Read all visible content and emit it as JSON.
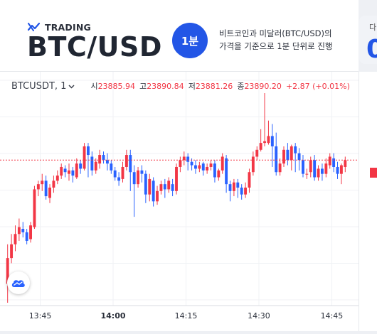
{
  "header": {
    "brand": "TRADING",
    "pair": "BTC/USD",
    "interval_badge": "1분",
    "description_line1": "비트코인과 미달러(BTC/USD)의",
    "description_line2": "가격을 기준으로 1분 단위로 진행",
    "side_card_label": "다",
    "side_card_value": "0"
  },
  "legend": {
    "symbol": "BTCUSDT, 1",
    "open_label": "시",
    "open": "23885.94",
    "high_label": "고",
    "high": "23890.84",
    "low_label": "저",
    "low": "23881.26",
    "close_label": "종",
    "close": "23890.20",
    "change": "+2.87 (+0.01%)"
  },
  "colors": {
    "up": "#f23645",
    "down": "#2962ff",
    "accent": "#2356e6"
  },
  "chart_data": {
    "type": "candlestick",
    "x_ticks": [
      "13:45",
      "14:00",
      "14:15",
      "14:30",
      "14:45"
    ],
    "current_price_line": "dashed red",
    "candles": [
      [
        23800,
        23815,
        23789,
        23823
      ],
      [
        23815,
        23823,
        23812,
        23829
      ],
      [
        23823,
        23829,
        23819,
        23834
      ],
      [
        23829,
        23833,
        23825,
        23838
      ],
      [
        23832,
        23830,
        23827,
        23836
      ],
      [
        23830,
        23825,
        23823,
        23832
      ],
      [
        23826,
        23834,
        23824,
        23836
      ],
      [
        23833,
        23855,
        23832,
        23857
      ],
      [
        23855,
        23858,
        23851,
        23860
      ],
      [
        23858,
        23860,
        23854,
        23864
      ],
      [
        23860,
        23851,
        23849,
        23863
      ],
      [
        23850,
        23856,
        23847,
        23858
      ],
      [
        23856,
        23860,
        23853,
        23863
      ],
      [
        23860,
        23863,
        23858,
        23866
      ],
      [
        23863,
        23868,
        23861,
        23870
      ],
      [
        23867,
        23865,
        23862,
        23869
      ],
      [
        23864,
        23866,
        23860,
        23870
      ],
      [
        23866,
        23863,
        23859,
        23868
      ],
      [
        23862,
        23870,
        23861,
        23873
      ],
      [
        23870,
        23867,
        23864,
        23872
      ],
      [
        23867,
        23880,
        23866,
        23882
      ],
      [
        23880,
        23875,
        23862,
        23882
      ],
      [
        23874,
        23866,
        23863,
        23877
      ],
      [
        23866,
        23871,
        23864,
        23873
      ],
      [
        23870,
        23875,
        23867,
        23878
      ],
      [
        23875,
        23872,
        23870,
        23877
      ],
      [
        23872,
        23870,
        23866,
        23876
      ],
      [
        23870,
        23866,
        23864,
        23872
      ],
      [
        23866,
        23862,
        23860,
        23868
      ],
      [
        23862,
        23860,
        23857,
        23865
      ],
      [
        23861,
        23868,
        23859,
        23871
      ],
      [
        23868,
        23875,
        23866,
        23878
      ],
      [
        23875,
        23865,
        23854,
        23878
      ],
      [
        23865,
        23858,
        23839,
        23869
      ],
      [
        23858,
        23866,
        23856,
        23868
      ],
      [
        23866,
        23864,
        23859,
        23869
      ],
      [
        23864,
        23852,
        23847,
        23866
      ],
      [
        23852,
        23861,
        23848,
        23864
      ],
      [
        23860,
        23848,
        23845,
        23862
      ],
      [
        23848,
        23854,
        23846,
        23857
      ],
      [
        23854,
        23858,
        23852,
        23860
      ],
      [
        23858,
        23855,
        23850,
        23861
      ],
      [
        23855,
        23860,
        23853,
        23862
      ],
      [
        23858,
        23854,
        23851,
        23861
      ],
      [
        23854,
        23868,
        23852,
        23870
      ],
      [
        23868,
        23872,
        23865,
        23874
      ],
      [
        23872,
        23874,
        23869,
        23877
      ],
      [
        23874,
        23871,
        23866,
        23876
      ],
      [
        23871,
        23869,
        23866,
        23873
      ],
      [
        23869,
        23867,
        23864,
        23872
      ],
      [
        23867,
        23869,
        23865,
        23871
      ],
      [
        23870,
        23866,
        23863,
        23871
      ],
      [
        23866,
        23868,
        23864,
        23870
      ],
      [
        23868,
        23870,
        23866,
        23872
      ],
      [
        23870,
        23862,
        23859,
        23872
      ],
      [
        23862,
        23866,
        23860,
        23867
      ],
      [
        23866,
        23874,
        23864,
        23876
      ],
      [
        23873,
        23858,
        23853,
        23875
      ],
      [
        23858,
        23854,
        23848,
        23860
      ],
      [
        23854,
        23859,
        23851,
        23861
      ],
      [
        23859,
        23856,
        23850,
        23861
      ],
      [
        23856,
        23852,
        23849,
        23858
      ],
      [
        23852,
        23856,
        23850,
        23859
      ],
      [
        23856,
        23865,
        23853,
        23867
      ],
      [
        23865,
        23874,
        23863,
        23877
      ],
      [
        23874,
        23878,
        23872,
        23880
      ],
      [
        23878,
        23882,
        23877,
        23890
      ],
      [
        23882,
        23883,
        23880,
        23911
      ],
      [
        23882,
        23886,
        23881,
        23895
      ],
      [
        23886,
        23880,
        23868,
        23893
      ],
      [
        23880,
        23865,
        23863,
        23888
      ],
      [
        23865,
        23870,
        23863,
        23873
      ],
      [
        23870,
        23878,
        23868,
        23880
      ],
      [
        23878,
        23872,
        23869,
        23882
      ],
      [
        23872,
        23880,
        23866,
        23881
      ],
      [
        23880,
        23876,
        23865,
        23882
      ],
      [
        23876,
        23872,
        23866,
        23879
      ],
      [
        23872,
        23864,
        23862,
        23875
      ],
      [
        23864,
        23864,
        23861,
        23867
      ],
      [
        23865,
        23872,
        23862,
        23874
      ],
      [
        23872,
        23862,
        23860,
        23875
      ],
      [
        23862,
        23867,
        23860,
        23869
      ],
      [
        23867,
        23864,
        23860,
        23870
      ],
      [
        23864,
        23870,
        23862,
        23873
      ],
      [
        23869,
        23874,
        23867,
        23876
      ],
      [
        23873,
        23868,
        23865,
        23876
      ],
      [
        23868,
        23864,
        23861,
        23871
      ],
      [
        23864,
        23869,
        23858,
        23870
      ],
      [
        23868,
        23872,
        23865,
        23874
      ]
    ]
  }
}
